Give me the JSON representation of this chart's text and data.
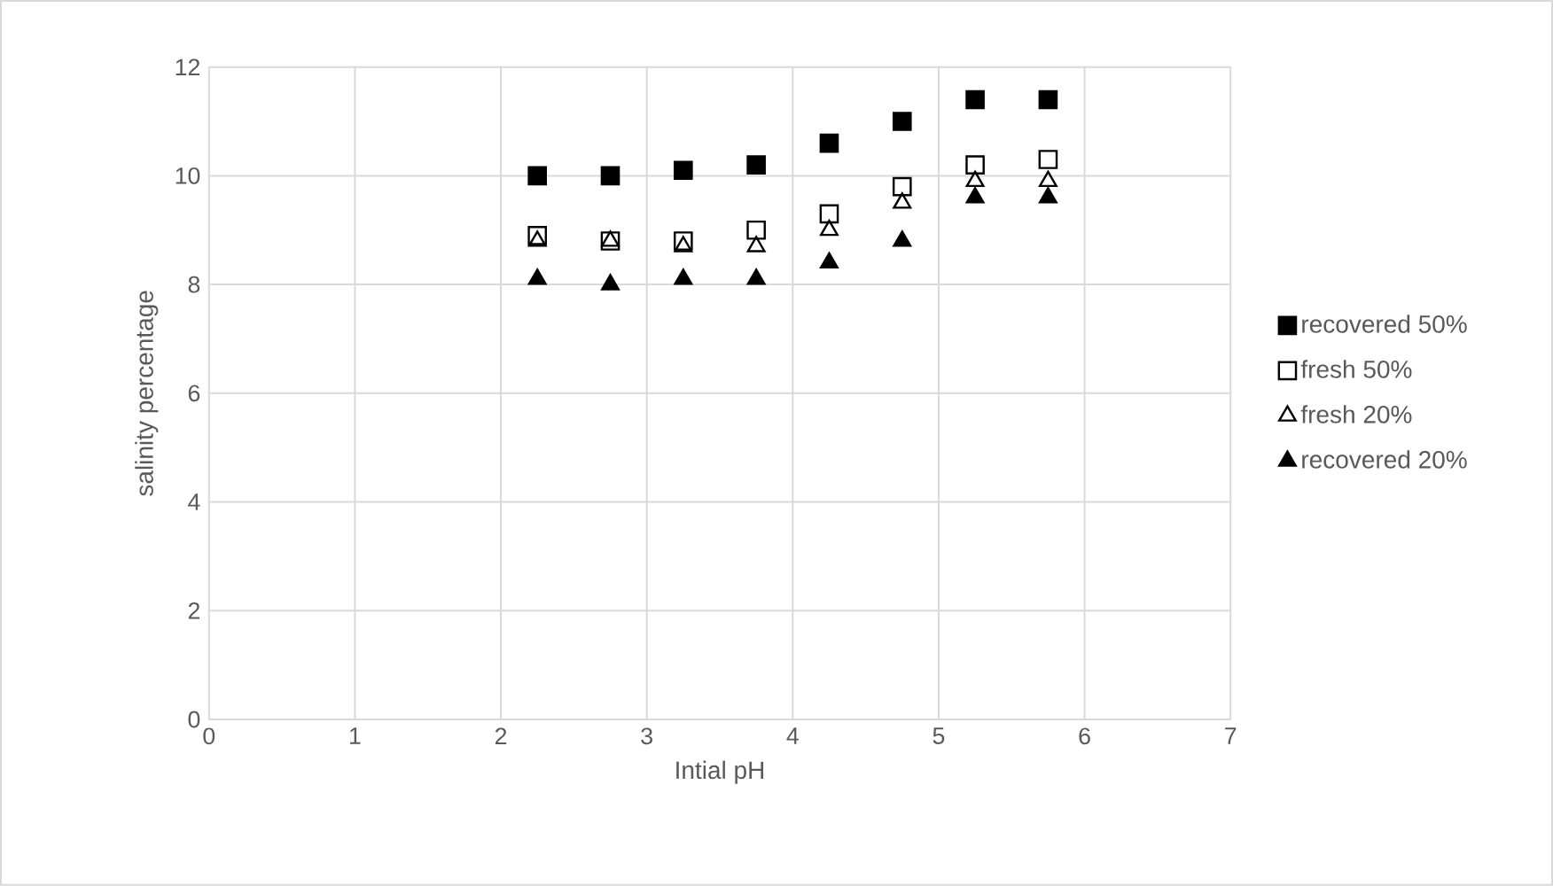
{
  "chart_data": {
    "type": "scatter",
    "xlabel": "Intial pH",
    "ylabel": "salinity percentage",
    "x": [
      2.25,
      2.75,
      3.25,
      3.75,
      4.25,
      4.75,
      5.25,
      5.75
    ],
    "series": [
      {
        "name": "recovered 50%",
        "color": "#000000",
        "marker": "square",
        "values": [
          10.0,
          10.0,
          10.1,
          10.2,
          10.6,
          11.0,
          11.4,
          11.4
        ]
      },
      {
        "name": "fresh 50%",
        "color": "#000000",
        "marker": "square-open",
        "values": [
          8.9,
          8.8,
          8.8,
          9.0,
          9.3,
          9.8,
          10.2,
          10.3
        ]
      },
      {
        "name": "fresh 20%",
        "color": "#000000",
        "marker": "triangle-open",
        "values": [
          8.8,
          8.8,
          8.7,
          8.7,
          9.0,
          9.5,
          9.9,
          9.9
        ]
      },
      {
        "name": "recovered 20%",
        "color": "#000000",
        "marker": "triangle",
        "values": [
          8.1,
          8.0,
          8.1,
          8.1,
          8.4,
          8.8,
          9.6,
          9.6
        ]
      }
    ],
    "xlim": [
      0,
      7
    ],
    "xticks": [
      0,
      1,
      2,
      3,
      4,
      5,
      6,
      7
    ],
    "ylim": [
      0,
      12
    ],
    "yticks": [
      0,
      2,
      4,
      6,
      8,
      10,
      12
    ],
    "grid": true,
    "legend": "right"
  }
}
